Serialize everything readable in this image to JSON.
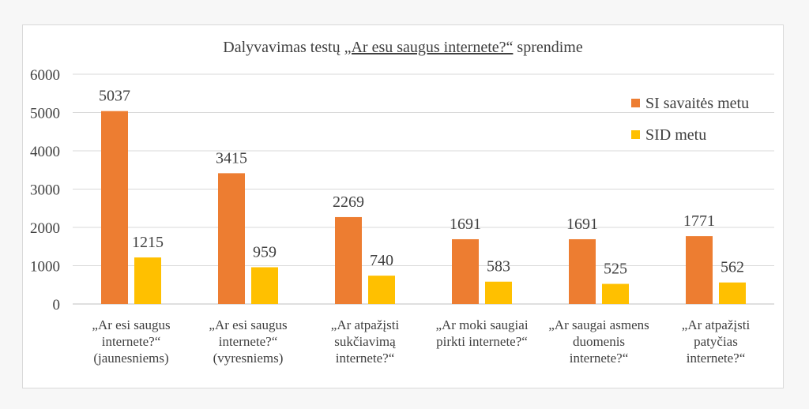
{
  "chart_data": {
    "type": "bar",
    "title_parts": {
      "before": "Dalyvavimas testų ",
      "underlined": "„Ar esu saugus internete?“",
      "after": " sprendime"
    },
    "categories": [
      [
        "„Ar esi saugus",
        "internete?“",
        "(jaunesniems)"
      ],
      [
        "„Ar esi saugus",
        "internete?“",
        "(vyresniems)"
      ],
      [
        "„Ar atpažįsti",
        "sukčiavimą",
        "internete?“"
      ],
      [
        "„Ar moki saugiai",
        "pirkti internete?“"
      ],
      [
        "„Ar saugai asmens",
        "duomenis",
        "internete?“"
      ],
      [
        "„Ar atpažįsti",
        "patyčias",
        "internete?“"
      ]
    ],
    "series": [
      {
        "name": "SI savaitės metu",
        "color": "#ed7d31",
        "values": [
          5037,
          3415,
          2269,
          1691,
          1691,
          1771
        ]
      },
      {
        "name": "SID metu",
        "color": "#ffc000",
        "values": [
          1215,
          959,
          740,
          583,
          525,
          562
        ]
      }
    ],
    "ylim": [
      0,
      6000
    ],
    "yticks": [
      0,
      1000,
      2000,
      3000,
      4000,
      5000,
      6000
    ],
    "grid": true,
    "legend_position": "top-right"
  }
}
